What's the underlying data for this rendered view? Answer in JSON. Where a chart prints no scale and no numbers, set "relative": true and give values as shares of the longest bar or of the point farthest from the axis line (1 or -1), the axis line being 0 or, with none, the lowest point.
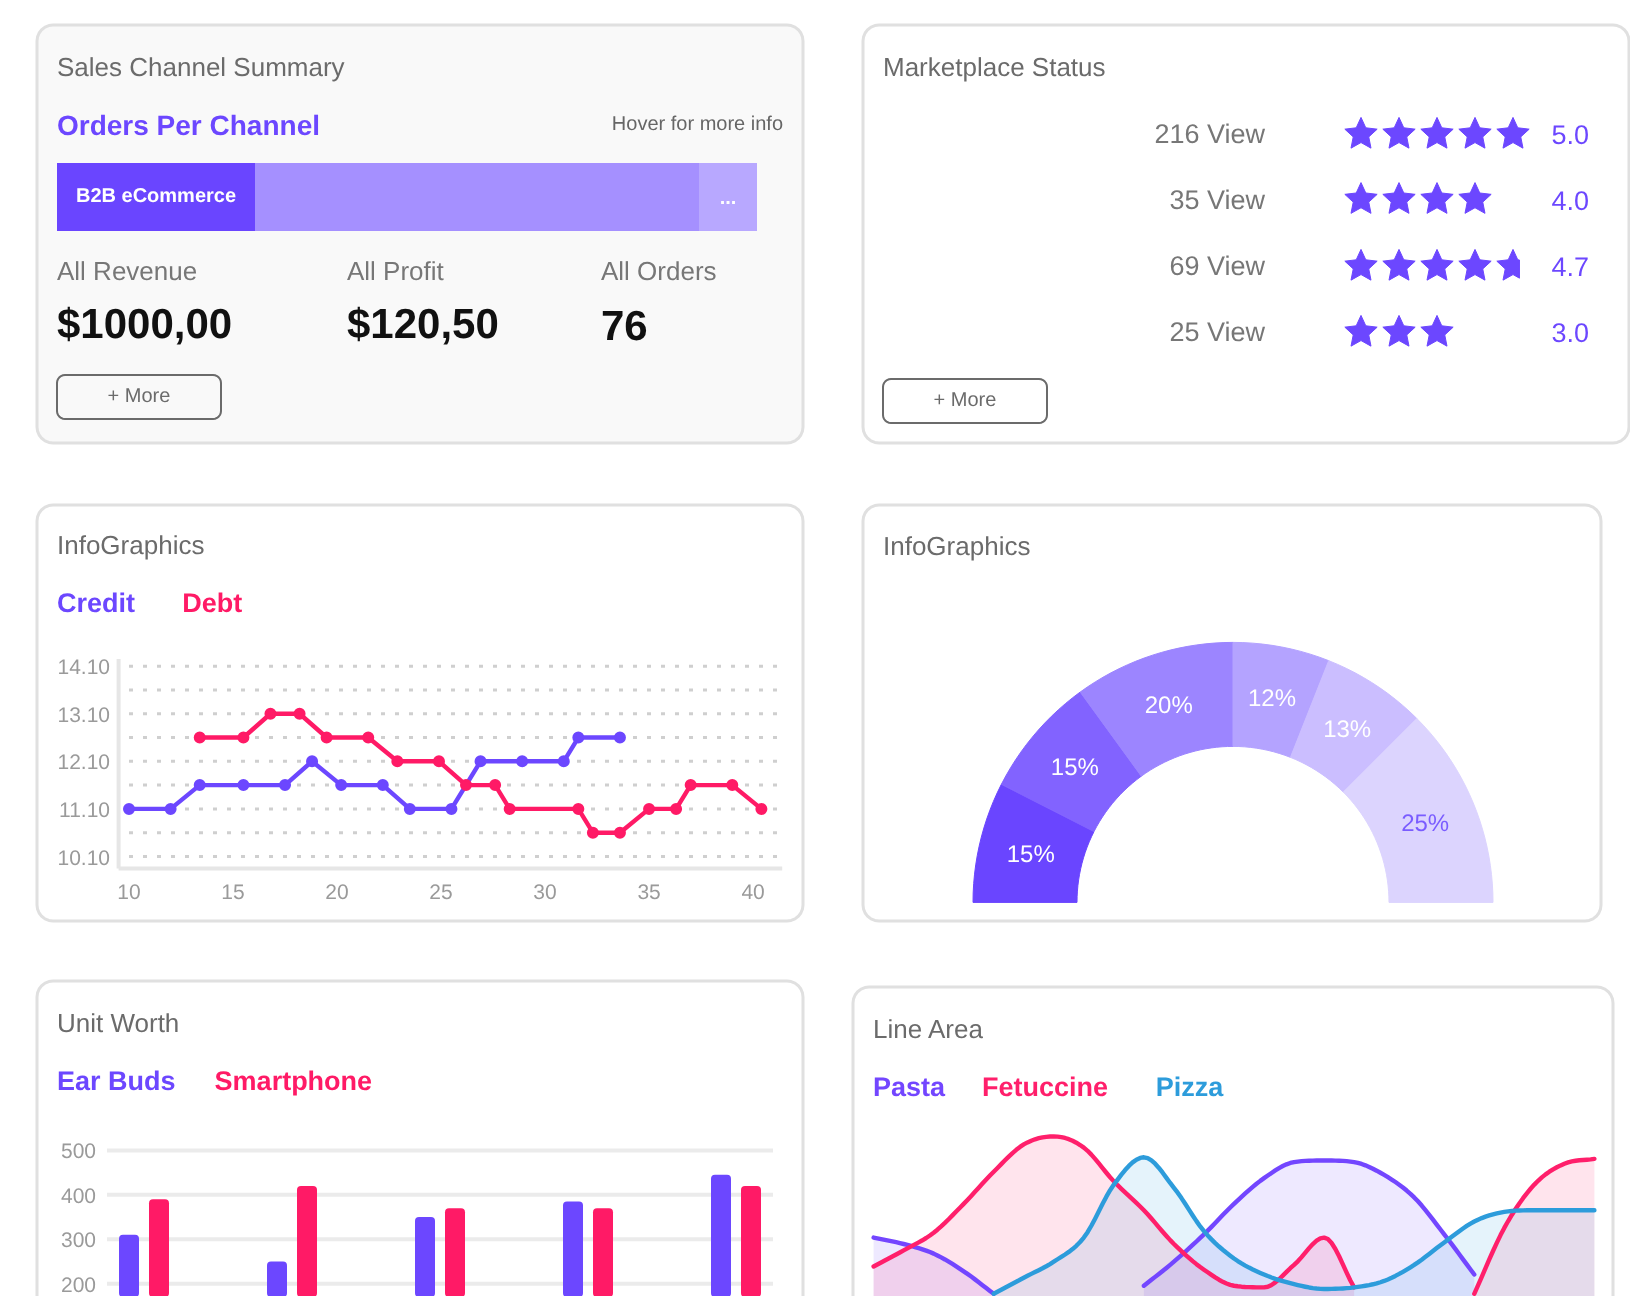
{
  "chart_data": [
    {
      "type": "other",
      "title": "Sales Channel Summary",
      "subtitle": "Orders Per Channel",
      "annotations": [
        "Hover for more info",
        "B2B eCommerce",
        "...",
        "All Revenue",
        "$1000,00",
        "All Profit",
        "$120,50",
        "All Orders",
        "76",
        "+ More"
      ]
    },
    {
      "type": "other",
      "title": "Marketplace Status",
      "categories": [
        null,
        null,
        null,
        null
      ],
      "values": [
        5.0,
        4.0,
        4.7,
        3.0
      ],
      "value_labels": [
        "5.0",
        "4.0",
        "4.7",
        "3.0"
      ],
      "color": "#6c47ff",
      "annotations": [
        "216 View",
        "35 View",
        "69 View",
        "25 View",
        "+ More"
      ]
    },
    {
      "type": "line",
      "title": "InfoGraphics",
      "xlim": [
        9.5,
        41.4
      ],
      "ylim": [
        9.85,
        14.25
      ],
      "xticks": [
        10,
        15,
        20,
        25,
        30,
        35,
        40
      ],
      "yticks": [
        {
          "value": 10.1,
          "label": "10.10"
        },
        {
          "value": 10.6,
          "label": null
        },
        {
          "value": 11.1,
          "label": "11.10"
        },
        {
          "value": 11.6,
          "label": null
        },
        {
          "value": 12.1,
          "label": "12.10"
        },
        {
          "value": 12.6,
          "label": null
        },
        {
          "value": 13.1,
          "label": "13.10"
        },
        {
          "value": 13.6,
          "label": null
        },
        {
          "value": 14.1,
          "label": "14.10"
        }
      ],
      "grid": "y",
      "marker": "circle",
      "legend": "top left",
      "series": [
        {
          "name": "Credit",
          "color": "#6c47ff",
          "x": [
            10,
            12,
            13.4,
            15.5,
            17.5,
            18.8,
            20.2,
            22.2,
            23.5,
            25.5,
            26.9,
            28.9,
            30.9,
            31.6,
            33.6
          ],
          "values": [
            11.1,
            11.1,
            11.6,
            11.6,
            11.6,
            12.1,
            11.6,
            11.6,
            11.1,
            11.1,
            12.1,
            12.1,
            12.1,
            12.6,
            12.6
          ]
        },
        {
          "name": "Debt",
          "color": "#ff1a66",
          "x": [
            13.4,
            15.5,
            16.8,
            18.2,
            19.5,
            21.5,
            22.9,
            24.9,
            26.2,
            27.6,
            28.3,
            31.6,
            32.3,
            33.6,
            35.0,
            36.3,
            37.0,
            39.0,
            40.4
          ],
          "values": [
            12.6,
            12.6,
            13.1,
            13.1,
            12.6,
            12.6,
            12.1,
            12.1,
            11.6,
            11.6,
            11.1,
            11.1,
            10.6,
            10.6,
            11.1,
            11.1,
            11.6,
            11.6,
            11.1
          ]
        }
      ]
    },
    {
      "type": "donut",
      "title": "InfoGraphics",
      "categories": [
        null,
        null,
        null,
        null,
        null,
        null
      ],
      "values": [
        15,
        15,
        20,
        12,
        13,
        25
      ],
      "colors": [
        "#6a45ff",
        "#8263ff",
        "#9c85ff",
        "#b4a3ff",
        "#cbbeff",
        "#dcd4fe"
      ],
      "value_labels": [
        "15%",
        "15%",
        "20%",
        "12%",
        "13%",
        "25%"
      ]
    },
    {
      "type": "bar",
      "title": "Unit Worth",
      "categories": [
        null,
        null,
        null,
        null,
        null
      ],
      "ylim": [
        170,
        500
      ],
      "yticks": [
        200,
        300,
        400,
        500
      ],
      "grid": "y",
      "legend": "top left",
      "series": [
        {
          "name": "Ear Buds",
          "color": "#6c47ff",
          "values": [
            310,
            250,
            350,
            385,
            445
          ]
        },
        {
          "name": "Smartphone",
          "color": "#ff1a66",
          "values": [
            390,
            420,
            370,
            370,
            420
          ]
        }
      ]
    },
    {
      "type": "area",
      "title": "Line Area",
      "relative": true,
      "legend": "top left",
      "categories": [
        null,
        null,
        null,
        null,
        null,
        null,
        null,
        null,
        null,
        null,
        null,
        null,
        null,
        null,
        null,
        null,
        null,
        null,
        null,
        null,
        null,
        null,
        null,
        null,
        null
      ],
      "series": [
        {
          "name": "Pasta",
          "color": "#7346ff",
          "values": [
            0.37,
            0.33,
            0.27,
            0.16,
            0.02,
            null,
            null,
            null,
            null,
            0.07,
            0.22,
            0.39,
            0.58,
            0.74,
            0.84,
            0.85,
            0.84,
            0.76,
            0.62,
            0.39,
            0.14,
            null,
            null,
            null,
            null
          ]
        },
        {
          "name": "Fetuccine",
          "color": "#ff1f6b",
          "values": [
            0.19,
            0.29,
            0.4,
            0.58,
            0.78,
            0.95,
            1.0,
            0.93,
            0.72,
            0.54,
            0.33,
            0.17,
            0.07,
            0.06,
            0.2,
            0.37,
            0.06,
            null,
            null,
            null,
            0.02,
            0.43,
            0.7,
            0.83,
            0.86
          ]
        },
        {
          "name": "Pizza",
          "color": "#2d9cdb",
          "values": [
            null,
            null,
            null,
            null,
            0.02,
            0.12,
            0.22,
            0.37,
            0.7,
            0.87,
            0.68,
            0.41,
            0.24,
            0.14,
            0.08,
            0.05,
            0.06,
            0.1,
            0.2,
            0.34,
            0.47,
            0.53,
            0.54,
            0.54,
            0.54
          ]
        }
      ]
    }
  ]
}
